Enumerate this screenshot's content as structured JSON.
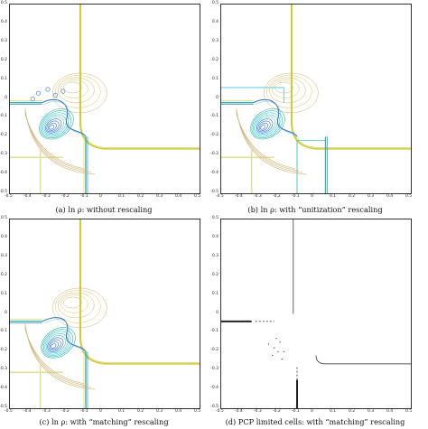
{
  "figure": {
    "panels": [
      {
        "id": "a",
        "caption": "(a) ln ρ:  without rescaling",
        "kind": "contour",
        "xticks": [
          "-0.5",
          "-0.4",
          "-0.3",
          "-0.2",
          "-0.1",
          "0",
          "0.1",
          "0.2",
          "0.3",
          "0.4",
          "0.5"
        ],
        "yticks": [
          "0.5",
          "0.4",
          "0.3",
          "0.2",
          "0.1",
          "0",
          "-0.1",
          "-0.2",
          "-0.3",
          "-0.4",
          "-0.5"
        ]
      },
      {
        "id": "b",
        "caption": "(b) ln ρ:  with “unitization” rescaling",
        "kind": "contour",
        "xticks": [
          "-0.5",
          "-0.4",
          "-0.3",
          "-0.2",
          "-0.1",
          "0",
          "0.1",
          "0.2",
          "0.3",
          "0.4",
          "0.5"
        ],
        "yticks": [
          "0.5",
          "0.4",
          "0.3",
          "0.2",
          "0.1",
          "0",
          "-0.1",
          "-0.2",
          "-0.3",
          "-0.4",
          "-0.5"
        ]
      },
      {
        "id": "c",
        "caption": "(c) ln ρ:  with “matching” rescaling",
        "kind": "contour",
        "xticks": [
          "-0.5",
          "-0.4",
          "-0.3",
          "-0.2",
          "-0.1",
          "0",
          "0.1",
          "0.2",
          "0.3",
          "0.4",
          "0.5"
        ],
        "yticks": [
          "0.5",
          "0.4",
          "0.3",
          "0.2",
          "0.1",
          "0",
          "-0.1",
          "-0.2",
          "-0.3",
          "-0.4",
          "-0.5"
        ]
      },
      {
        "id": "d",
        "caption": "(d) PCP limited cells:  with “matching” rescaling",
        "kind": "cells",
        "xticks": [
          "-0.5",
          "-0.4",
          "-0.3",
          "-0.2",
          "-0.1",
          "0",
          "0.1",
          "0.2",
          "0.3",
          "0.4",
          "0.5"
        ],
        "yticks": [
          "0.5",
          "0.4",
          "0.3",
          "0.2",
          "0.1",
          "0",
          "-0.1",
          "-0.2",
          "-0.3",
          "-0.4",
          "-0.5"
        ]
      }
    ],
    "colors": {
      "outer": "#c8cf3a",
      "warm": "#e8c24a",
      "tan": "#cdb273",
      "teal": "#2bb8a0",
      "blue": "#2f6fc8",
      "cyan": "#3fc7d8",
      "dark": "#222222"
    }
  }
}
